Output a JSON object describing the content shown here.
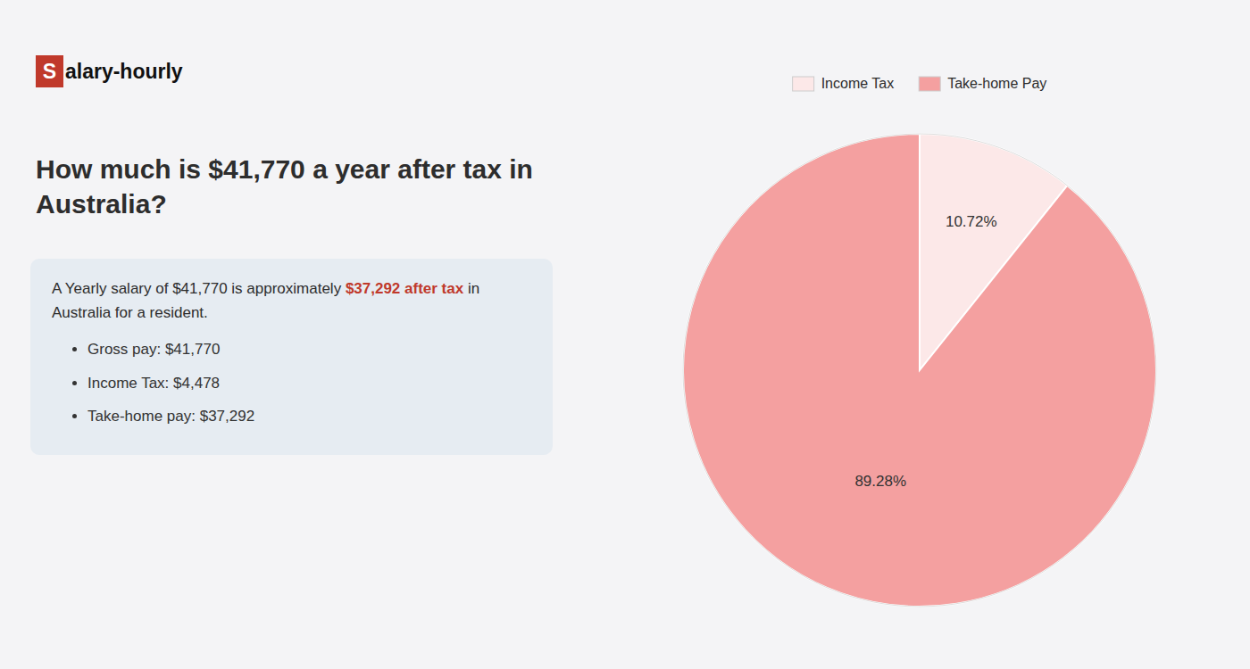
{
  "chart_data": {
    "type": "pie",
    "title": "How much is $41,770 a year after tax in Australia?",
    "categories": [
      "Income Tax",
      "Take-home Pay"
    ],
    "values": [
      10.72,
      89.28
    ],
    "value_labels": [
      "10.72%",
      "89.28%"
    ],
    "colors": [
      "#fce8e8",
      "#f4a0a0"
    ],
    "data_labels": true,
    "legend": "top",
    "annotations": [
      {
        "text": "S",
        "color": "#c0392b"
      },
      {
        "text": "alary-hourly"
      },
      {
        "text": "A Yearly salary of $41,770 is approximately "
      },
      {
        "text": "$37,292 after tax",
        "color": "#c0392b"
      },
      {
        "text": " in"
      },
      {
        "text": "Australia for a resident."
      },
      {
        "text": "Gross pay: $41,770"
      },
      {
        "text": "Income Tax: $4,478"
      },
      {
        "text": "Take-home pay: $37,292"
      }
    ]
  }
}
